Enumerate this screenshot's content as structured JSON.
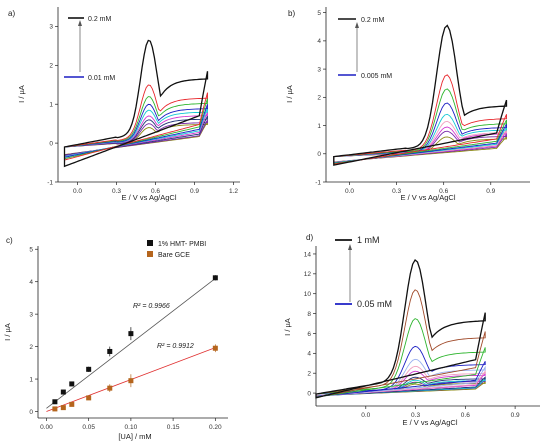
{
  "colors": {
    "black": "#111111",
    "red": "#e8262b",
    "green": "#2fb52f",
    "blue": "#1c1fc4",
    "cyan": "#14c9d4",
    "magenta": "#d23ad2",
    "olive": "#8c8a14",
    "navy": "#223377",
    "purple": "#7a2aa8",
    "brown": "#a04a2a",
    "pink": "#f0a0c0",
    "lightblue": "#9ab0f0",
    "fitBlack": "#555555",
    "fitRed": "#e03030",
    "bareGce": "#b5651d"
  },
  "chart_data": [
    {
      "panel": "a)",
      "type": "line",
      "xlabel": "E / V vs Ag/AgCl",
      "ylabel": "I / µA",
      "xlim": [
        -0.15,
        1.25
      ],
      "ylim": [
        -1,
        3.5
      ],
      "xticks": [
        "0.0",
        "0.3",
        "0.6",
        "0.9",
        "1.2"
      ],
      "xtick_values": [
        0.0,
        0.3,
        0.6,
        0.9,
        1.2
      ],
      "yticks": [
        "-1",
        "0",
        "1",
        "2",
        "3"
      ],
      "ytick_values": [
        -1,
        0,
        1,
        2,
        3
      ],
      "annotation_top": "0.2 mM",
      "annotation_bottom": "0.01 mM",
      "series": [
        {
          "color": "black",
          "peak": 2.65,
          "base": 1.85,
          "bottom": -0.78
        },
        {
          "color": "red",
          "peak": 1.5,
          "base": 1.3,
          "bottom": -0.55
        },
        {
          "color": "green",
          "peak": 1.2,
          "base": 1.15,
          "bottom": -0.5
        },
        {
          "color": "blue",
          "peak": 1.0,
          "base": 1.0,
          "bottom": -0.45
        },
        {
          "color": "cyan",
          "peak": 0.85,
          "base": 0.9,
          "bottom": -0.42
        },
        {
          "color": "magenta",
          "peak": 0.7,
          "base": 0.8,
          "bottom": -0.4
        },
        {
          "color": "navy",
          "peak": 0.6,
          "base": 0.7,
          "bottom": -0.38
        },
        {
          "color": "purple",
          "peak": 0.5,
          "base": 0.6,
          "bottom": -0.36
        },
        {
          "color": "olive",
          "peak": 0.4,
          "base": 0.55,
          "bottom": -0.35
        }
      ],
      "peak_potential": 0.55,
      "e_start": -0.1,
      "e_end": 1.0
    },
    {
      "panel": "b)",
      "type": "line",
      "xlabel": "E / V vs Ag/AgCl",
      "ylabel": "I / µA",
      "xlim": [
        -0.15,
        1.15
      ],
      "ylim": [
        -1,
        5.2
      ],
      "xticks": [
        "0.0",
        "0.3",
        "0.6",
        "0.9"
      ],
      "xtick_values": [
        0.0,
        0.3,
        0.6,
        0.9
      ],
      "yticks": [
        "-1",
        "0",
        "1",
        "2",
        "3",
        "4",
        "5"
      ],
      "ytick_values": [
        -1,
        0,
        1,
        2,
        3,
        4,
        5
      ],
      "annotation_top": "0.2 mM",
      "annotation_bottom": "0.005 mM",
      "series": [
        {
          "color": "black",
          "peak": 4.55,
          "base": 1.9,
          "bottom": -0.5
        },
        {
          "color": "red",
          "peak": 2.8,
          "base": 1.4,
          "bottom": -0.45
        },
        {
          "color": "green",
          "peak": 2.3,
          "base": 1.2,
          "bottom": -0.42
        },
        {
          "color": "blue",
          "peak": 1.8,
          "base": 1.05,
          "bottom": -0.4
        },
        {
          "color": "cyan",
          "peak": 1.4,
          "base": 0.95,
          "bottom": -0.38
        },
        {
          "color": "pink",
          "peak": 1.15,
          "base": 0.85,
          "bottom": -0.37
        },
        {
          "color": "magenta",
          "peak": 0.95,
          "base": 0.8,
          "bottom": -0.36
        },
        {
          "color": "purple",
          "peak": 0.8,
          "base": 0.7,
          "bottom": -0.35
        },
        {
          "color": "olive",
          "peak": 0.6,
          "base": 0.6,
          "bottom": -0.34
        }
      ],
      "peak_potential": 0.62,
      "e_start": -0.1,
      "e_end": 1.0
    },
    {
      "panel": "c)",
      "type": "scatter",
      "xlabel": "[UA] / mM",
      "ylabel": "I / µA",
      "xlim": [
        -0.01,
        0.215
      ],
      "ylim": [
        -0.2,
        5.1
      ],
      "xticks": [
        "0.00",
        "0.05",
        "0.10",
        "0.15",
        "0.20"
      ],
      "xtick_values": [
        0.0,
        0.05,
        0.1,
        0.15,
        0.2
      ],
      "yticks": [
        "0",
        "1",
        "2",
        "3",
        "4",
        "5"
      ],
      "ytick_values": [
        0,
        1,
        2,
        3,
        4,
        5
      ],
      "series": [
        {
          "name": "1% HMT- PMBI",
          "color": "black",
          "x": [
            0.01,
            0.02,
            0.03,
            0.05,
            0.075,
            0.1,
            0.2
          ],
          "y": [
            0.3,
            0.6,
            0.85,
            1.3,
            1.85,
            2.4,
            4.12
          ],
          "err": [
            0.05,
            0.05,
            0.07,
            0.08,
            0.15,
            0.2,
            0.08
          ],
          "fit": [
            [
              0.0,
              0.1
            ],
            [
              0.2,
              4.1
            ]
          ],
          "r2": "R² = 0.9966"
        },
        {
          "name": "Bare GCE",
          "color": "bareGce",
          "x": [
            0.01,
            0.02,
            0.03,
            0.05,
            0.075,
            0.1,
            0.2
          ],
          "y": [
            0.08,
            0.12,
            0.22,
            0.42,
            0.72,
            0.95,
            1.95
          ],
          "err": [
            0.03,
            0.03,
            0.04,
            0.06,
            0.12,
            0.2,
            0.12
          ],
          "fit": [
            [
              0.0,
              0.0
            ],
            [
              0.2,
              1.97
            ]
          ],
          "r2": "R² = 0.9912"
        }
      ]
    },
    {
      "panel": "d)",
      "type": "line",
      "xlabel": "E / V vs Ag/AgCl",
      "ylabel": "I / µA",
      "xlim": [
        -0.3,
        1.05
      ],
      "ylim": [
        -1.3,
        14.8
      ],
      "xticks": [
        "0.0",
        "0.3",
        "0.6",
        "0.9"
      ],
      "xtick_values": [
        0.0,
        0.3,
        0.6,
        0.9
      ],
      "yticks": [
        "0",
        "2",
        "4",
        "6",
        "8",
        "10",
        "12",
        "14"
      ],
      "ytick_values": [
        0,
        2,
        4,
        6,
        8,
        10,
        12,
        14
      ],
      "annotation_top": "1 mM",
      "annotation_bottom": "0.05 mM",
      "series": [
        {
          "color": "black",
          "peak": 13.4,
          "base": 8.1,
          "bottom": -0.6
        },
        {
          "color": "brown",
          "peak": 10.4,
          "base": 6.2,
          "bottom": -0.55
        },
        {
          "color": "green",
          "peak": 7.5,
          "base": 4.6,
          "bottom": -0.5
        },
        {
          "color": "blue",
          "peak": 4.7,
          "base": 3.2,
          "bottom": -0.45
        },
        {
          "color": "lightblue",
          "peak": 3.4,
          "base": 2.6,
          "bottom": -0.4
        },
        {
          "color": "pink",
          "peak": 2.7,
          "base": 2.2,
          "bottom": -0.38
        },
        {
          "color": "magenta",
          "peak": 2.2,
          "base": 2.0,
          "bottom": -0.36
        },
        {
          "color": "navy",
          "peak": 1.6,
          "base": 1.6,
          "bottom": -0.34
        },
        {
          "color": "cyan",
          "peak": 1.3,
          "base": 1.4,
          "bottom": -0.33
        },
        {
          "color": "purple",
          "peak": 1.1,
          "base": 1.3,
          "bottom": -0.32
        },
        {
          "color": "olive",
          "peak": 0.9,
          "base": 1.1,
          "bottom": -0.3
        }
      ],
      "peak_potential": 0.3,
      "e_start": -0.3,
      "e_end": 0.72
    }
  ]
}
